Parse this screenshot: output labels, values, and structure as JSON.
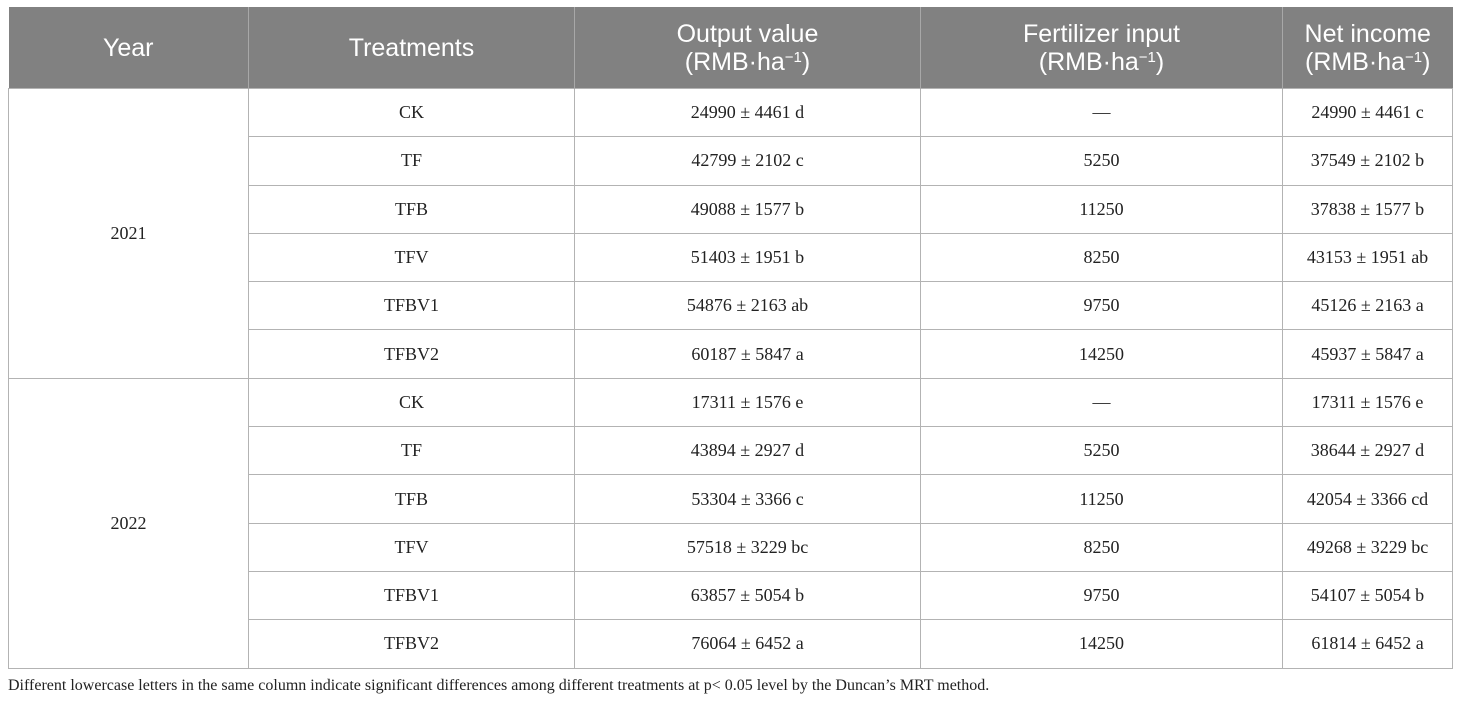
{
  "header": {
    "year": "Year",
    "treatments": "Treatments",
    "output_value": "Output value",
    "fertilizer_input": "Fertilizer input",
    "net_income": "Net income",
    "unit": "(RMB·ha",
    "unit_exp": "−1",
    "unit_close": ")"
  },
  "groups": [
    {
      "year": "2021",
      "rows": [
        {
          "treatment": "CK",
          "output": "24990 ± 4461 d",
          "fertilizer": "—",
          "net": "24990 ± 4461 c"
        },
        {
          "treatment": "TF",
          "output": "42799 ± 2102 c",
          "fertilizer": "5250",
          "net": "37549 ± 2102 b"
        },
        {
          "treatment": "TFB",
          "output": "49088 ± 1577 b",
          "fertilizer": "11250",
          "net": "37838 ± 1577 b"
        },
        {
          "treatment": "TFV",
          "output": "51403 ± 1951 b",
          "fertilizer": "8250",
          "net": "43153 ± 1951 ab"
        },
        {
          "treatment": "TFBV1",
          "output": "54876 ± 2163 ab",
          "fertilizer": "9750",
          "net": "45126 ± 2163 a"
        },
        {
          "treatment": "TFBV2",
          "output": "60187 ± 5847 a",
          "fertilizer": "14250",
          "net": "45937 ± 5847 a"
        }
      ]
    },
    {
      "year": "2022",
      "rows": [
        {
          "treatment": "CK",
          "output": "17311 ± 1576 e",
          "fertilizer": "—",
          "net": "17311 ± 1576 e"
        },
        {
          "treatment": "TF",
          "output": "43894 ± 2927 d",
          "fertilizer": "5250",
          "net": "38644 ± 2927 d"
        },
        {
          "treatment": "TFB",
          "output": "53304 ± 3366 c",
          "fertilizer": "11250",
          "net": "42054 ± 3366 cd"
        },
        {
          "treatment": "TFV",
          "output": "57518 ± 3229 bc",
          "fertilizer": "8250",
          "net": "49268 ± 3229 bc"
        },
        {
          "treatment": "TFBV1",
          "output": "63857 ± 5054 b",
          "fertilizer": "9750",
          "net": "54107 ± 5054 b"
        },
        {
          "treatment": "TFBV2",
          "output": "76064 ± 6452 a",
          "fertilizer": "14250",
          "net": "61814 ± 6452 a"
        }
      ]
    }
  ],
  "footnote": "Different lowercase letters in the same column indicate significant differences among different treatments at p< 0.05 level by the Duncan’s MRT method."
}
